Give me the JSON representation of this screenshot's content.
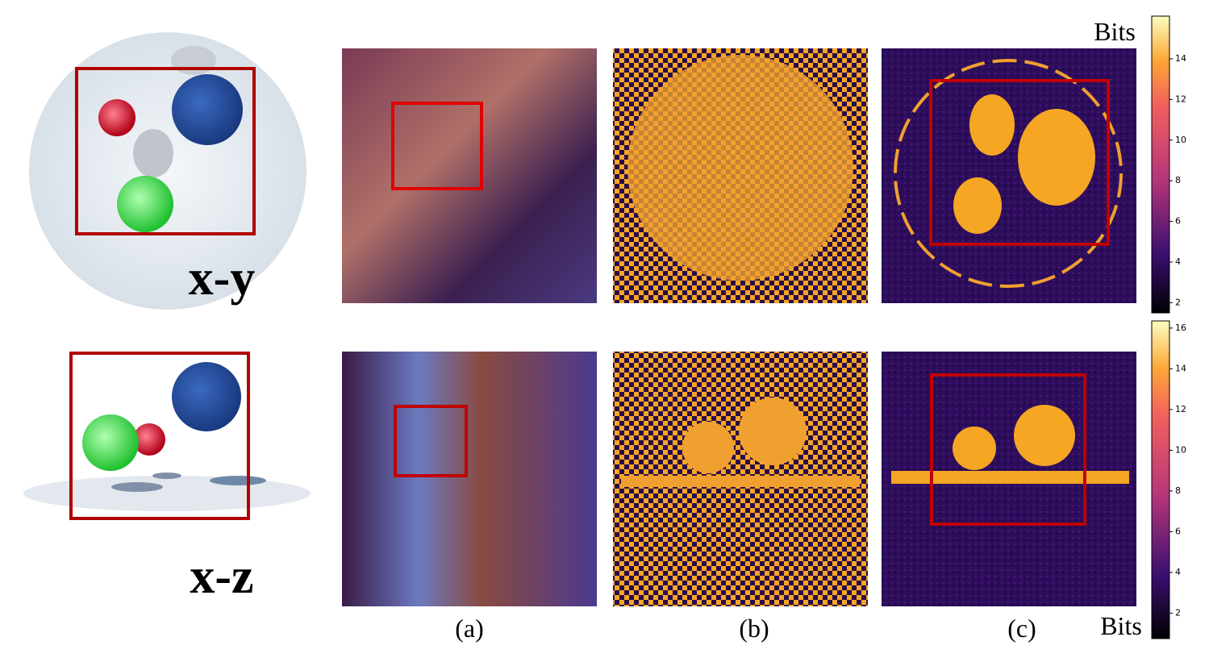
{
  "labels": {
    "row_xy": "x-y",
    "row_xz": "x-z",
    "panel_a": "(a)",
    "panel_b": "(b)",
    "panel_c": "(c)"
  },
  "colorbars": [
    {
      "title": "Bits",
      "range": [
        1.5,
        16.1
      ],
      "ticks": [
        2,
        4,
        6,
        8,
        10,
        12,
        14
      ]
    },
    {
      "title": "Bits",
      "range": [
        0.75,
        16.35
      ],
      "ticks": [
        2,
        4,
        6,
        8,
        10,
        12,
        14,
        16
      ]
    }
  ]
}
